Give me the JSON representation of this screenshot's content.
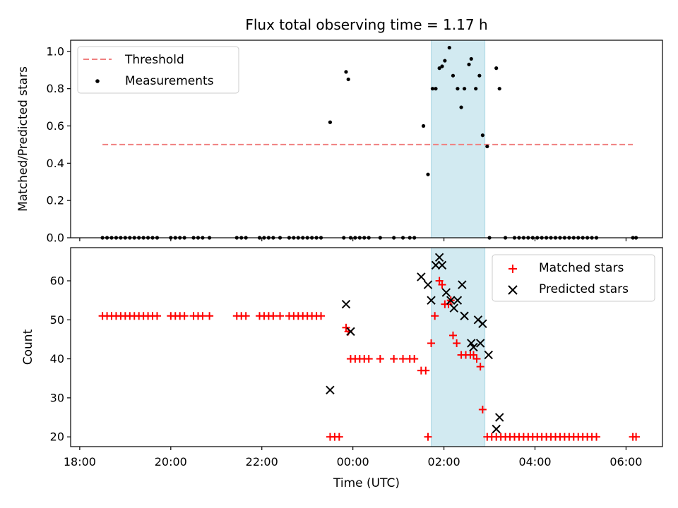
{
  "chart_data": [
    {
      "type": "scatter",
      "title": "Flux total observing time = 1.17 h",
      "xlabel": "",
      "ylabel": "Matched/Predicted stars",
      "xlim": [
        17.8,
        30.8
      ],
      "ylim": [
        0.0,
        1.06
      ],
      "yticks": [
        0.0,
        0.2,
        0.4,
        0.6,
        0.8,
        1.0
      ],
      "ytick_labels": [
        "0.0",
        "0.2",
        "0.4",
        "0.6",
        "0.8",
        "1.0"
      ],
      "legend": {
        "position": "top-left",
        "entries": [
          "Threshold",
          "Measurements"
        ]
      },
      "threshold": {
        "name": "Threshold",
        "value": 0.5,
        "x_start": 18.5,
        "x_end": 30.15,
        "color": "#f08080"
      },
      "highlight": {
        "x_start": 25.72,
        "x_end": 26.9,
        "color": "#add8e6"
      },
      "series": [
        {
          "name": "Measurements",
          "color": "#000000",
          "points": [
            [
              18.5,
              0
            ],
            [
              18.6,
              0
            ],
            [
              18.7,
              0
            ],
            [
              18.8,
              0
            ],
            [
              18.9,
              0
            ],
            [
              19.0,
              0
            ],
            [
              19.1,
              0
            ],
            [
              19.2,
              0
            ],
            [
              19.3,
              0
            ],
            [
              19.4,
              0
            ],
            [
              19.5,
              0
            ],
            [
              19.6,
              0
            ],
            [
              19.7,
              0
            ],
            [
              20.0,
              0
            ],
            [
              20.1,
              0
            ],
            [
              20.2,
              0
            ],
            [
              20.3,
              0
            ],
            [
              20.5,
              0
            ],
            [
              20.6,
              0
            ],
            [
              20.7,
              0
            ],
            [
              20.85,
              0
            ],
            [
              21.45,
              0
            ],
            [
              21.55,
              0
            ],
            [
              21.65,
              0
            ],
            [
              21.95,
              0
            ],
            [
              22.05,
              0
            ],
            [
              22.15,
              0
            ],
            [
              22.25,
              0
            ],
            [
              22.4,
              0
            ],
            [
              22.6,
              0
            ],
            [
              22.7,
              0
            ],
            [
              22.8,
              0
            ],
            [
              22.9,
              0
            ],
            [
              23.0,
              0
            ],
            [
              23.1,
              0
            ],
            [
              23.2,
              0
            ],
            [
              23.3,
              0
            ],
            [
              23.5,
              0.62
            ],
            [
              23.85,
              0.89
            ],
            [
              23.9,
              0.85
            ],
            [
              23.8,
              0
            ],
            [
              23.95,
              0
            ],
            [
              24.05,
              0
            ],
            [
              24.15,
              0
            ],
            [
              24.25,
              0
            ],
            [
              24.35,
              0
            ],
            [
              24.6,
              0
            ],
            [
              24.9,
              0
            ],
            [
              25.1,
              0
            ],
            [
              25.25,
              0
            ],
            [
              25.35,
              0
            ],
            [
              25.55,
              0.6
            ],
            [
              25.65,
              0.34
            ],
            [
              25.75,
              0.8
            ],
            [
              25.82,
              0.8
            ],
            [
              25.9,
              0.91
            ],
            [
              25.96,
              0.92
            ],
            [
              26.02,
              0.95
            ],
            [
              26.12,
              1.02
            ],
            [
              26.2,
              0.87
            ],
            [
              26.3,
              0.8
            ],
            [
              26.38,
              0.7
            ],
            [
              26.45,
              0.8
            ],
            [
              26.55,
              0.93
            ],
            [
              26.6,
              0.96
            ],
            [
              26.7,
              0.8
            ],
            [
              26.78,
              0.87
            ],
            [
              26.85,
              0.55
            ],
            [
              26.95,
              0.49
            ],
            [
              27.0,
              0
            ],
            [
              27.15,
              0.91
            ],
            [
              27.22,
              0.8
            ],
            [
              27.35,
              0
            ],
            [
              27.55,
              0
            ],
            [
              27.65,
              0
            ],
            [
              27.75,
              0
            ],
            [
              27.85,
              0
            ],
            [
              27.95,
              0
            ],
            [
              28.05,
              0
            ],
            [
              28.15,
              0
            ],
            [
              28.25,
              0
            ],
            [
              28.35,
              0
            ],
            [
              28.45,
              0
            ],
            [
              28.55,
              0
            ],
            [
              28.65,
              0
            ],
            [
              28.75,
              0
            ],
            [
              28.85,
              0
            ],
            [
              28.95,
              0
            ],
            [
              29.05,
              0
            ],
            [
              29.15,
              0
            ],
            [
              29.25,
              0
            ],
            [
              29.35,
              0
            ],
            [
              30.15,
              0
            ],
            [
              30.22,
              0
            ]
          ]
        }
      ]
    },
    {
      "type": "scatter",
      "title": "",
      "xlabel": "Time (UTC)",
      "ylabel": "Count",
      "xlim": [
        17.8,
        30.8
      ],
      "ylim": [
        17.5,
        68.5
      ],
      "xticks": [
        18,
        20,
        22,
        24,
        26,
        28,
        30
      ],
      "xtick_labels": [
        "18:00",
        "20:00",
        "22:00",
        "00:00",
        "02:00",
        "04:00",
        "06:00"
      ],
      "yticks": [
        20,
        30,
        40,
        50,
        60
      ],
      "ytick_labels": [
        "20",
        "30",
        "40",
        "50",
        "60"
      ],
      "legend": {
        "position": "top-right",
        "entries": [
          "Matched stars",
          "Predicted stars"
        ]
      },
      "highlight": {
        "x_start": 25.72,
        "x_end": 26.9,
        "color": "#add8e6"
      },
      "series": [
        {
          "name": "Matched stars",
          "marker": "plus",
          "color": "#ff0000",
          "points": [
            [
              18.5,
              51
            ],
            [
              18.6,
              51
            ],
            [
              18.7,
              51
            ],
            [
              18.8,
              51
            ],
            [
              18.9,
              51
            ],
            [
              19.0,
              51
            ],
            [
              19.1,
              51
            ],
            [
              19.2,
              51
            ],
            [
              19.3,
              51
            ],
            [
              19.4,
              51
            ],
            [
              19.5,
              51
            ],
            [
              19.6,
              51
            ],
            [
              19.7,
              51
            ],
            [
              20.0,
              51
            ],
            [
              20.1,
              51
            ],
            [
              20.2,
              51
            ],
            [
              20.3,
              51
            ],
            [
              20.5,
              51
            ],
            [
              20.6,
              51
            ],
            [
              20.7,
              51
            ],
            [
              20.85,
              51
            ],
            [
              21.45,
              51
            ],
            [
              21.55,
              51
            ],
            [
              21.65,
              51
            ],
            [
              21.95,
              51
            ],
            [
              22.05,
              51
            ],
            [
              22.15,
              51
            ],
            [
              22.25,
              51
            ],
            [
              22.4,
              51
            ],
            [
              22.6,
              51
            ],
            [
              22.7,
              51
            ],
            [
              22.8,
              51
            ],
            [
              22.9,
              51
            ],
            [
              23.0,
              51
            ],
            [
              23.1,
              51
            ],
            [
              23.2,
              51
            ],
            [
              23.3,
              51
            ],
            [
              23.5,
              20
            ],
            [
              23.6,
              20
            ],
            [
              23.7,
              20
            ],
            [
              23.85,
              48
            ],
            [
              23.9,
              47
            ],
            [
              23.95,
              40
            ],
            [
              24.05,
              40
            ],
            [
              24.15,
              40
            ],
            [
              24.25,
              40
            ],
            [
              24.35,
              40
            ],
            [
              24.6,
              40
            ],
            [
              24.9,
              40
            ],
            [
              25.1,
              40
            ],
            [
              25.25,
              40
            ],
            [
              25.35,
              40
            ],
            [
              25.5,
              37
            ],
            [
              25.6,
              37
            ],
            [
              25.65,
              20
            ],
            [
              25.72,
              44
            ],
            [
              25.8,
              51
            ],
            [
              25.9,
              60
            ],
            [
              25.96,
              59
            ],
            [
              26.02,
              54
            ],
            [
              26.1,
              54
            ],
            [
              26.15,
              55
            ],
            [
              26.2,
              46
            ],
            [
              26.28,
              44
            ],
            [
              26.38,
              41
            ],
            [
              26.48,
              41
            ],
            [
              26.58,
              41
            ],
            [
              26.65,
              41
            ],
            [
              26.72,
              40
            ],
            [
              26.8,
              38
            ],
            [
              26.85,
              27
            ],
            [
              26.95,
              20
            ],
            [
              27.05,
              20
            ],
            [
              27.15,
              20
            ],
            [
              27.25,
              20
            ],
            [
              27.35,
              20
            ],
            [
              27.45,
              20
            ],
            [
              27.55,
              20
            ],
            [
              27.65,
              20
            ],
            [
              27.75,
              20
            ],
            [
              27.85,
              20
            ],
            [
              27.95,
              20
            ],
            [
              28.05,
              20
            ],
            [
              28.15,
              20
            ],
            [
              28.25,
              20
            ],
            [
              28.35,
              20
            ],
            [
              28.45,
              20
            ],
            [
              28.55,
              20
            ],
            [
              28.65,
              20
            ],
            [
              28.75,
              20
            ],
            [
              28.85,
              20
            ],
            [
              28.95,
              20
            ],
            [
              29.05,
              20
            ],
            [
              29.15,
              20
            ],
            [
              29.25,
              20
            ],
            [
              29.35,
              20
            ],
            [
              30.15,
              20
            ],
            [
              30.22,
              20
            ]
          ]
        },
        {
          "name": "Predicted stars",
          "marker": "x",
          "color": "#000000",
          "points": [
            [
              23.5,
              32
            ],
            [
              23.85,
              54
            ],
            [
              23.95,
              47
            ],
            [
              25.5,
              61
            ],
            [
              25.65,
              59
            ],
            [
              25.72,
              55
            ],
            [
              25.82,
              64
            ],
            [
              25.9,
              66
            ],
            [
              25.96,
              64
            ],
            [
              26.05,
              57
            ],
            [
              26.15,
              55
            ],
            [
              26.22,
              53
            ],
            [
              26.3,
              55
            ],
            [
              26.4,
              59
            ],
            [
              26.45,
              51
            ],
            [
              26.6,
              44
            ],
            [
              26.65,
              43
            ],
            [
              26.75,
              50
            ],
            [
              26.8,
              44
            ],
            [
              26.85,
              49
            ],
            [
              26.98,
              41
            ],
            [
              27.15,
              22
            ],
            [
              27.22,
              25
            ]
          ]
        }
      ]
    }
  ]
}
